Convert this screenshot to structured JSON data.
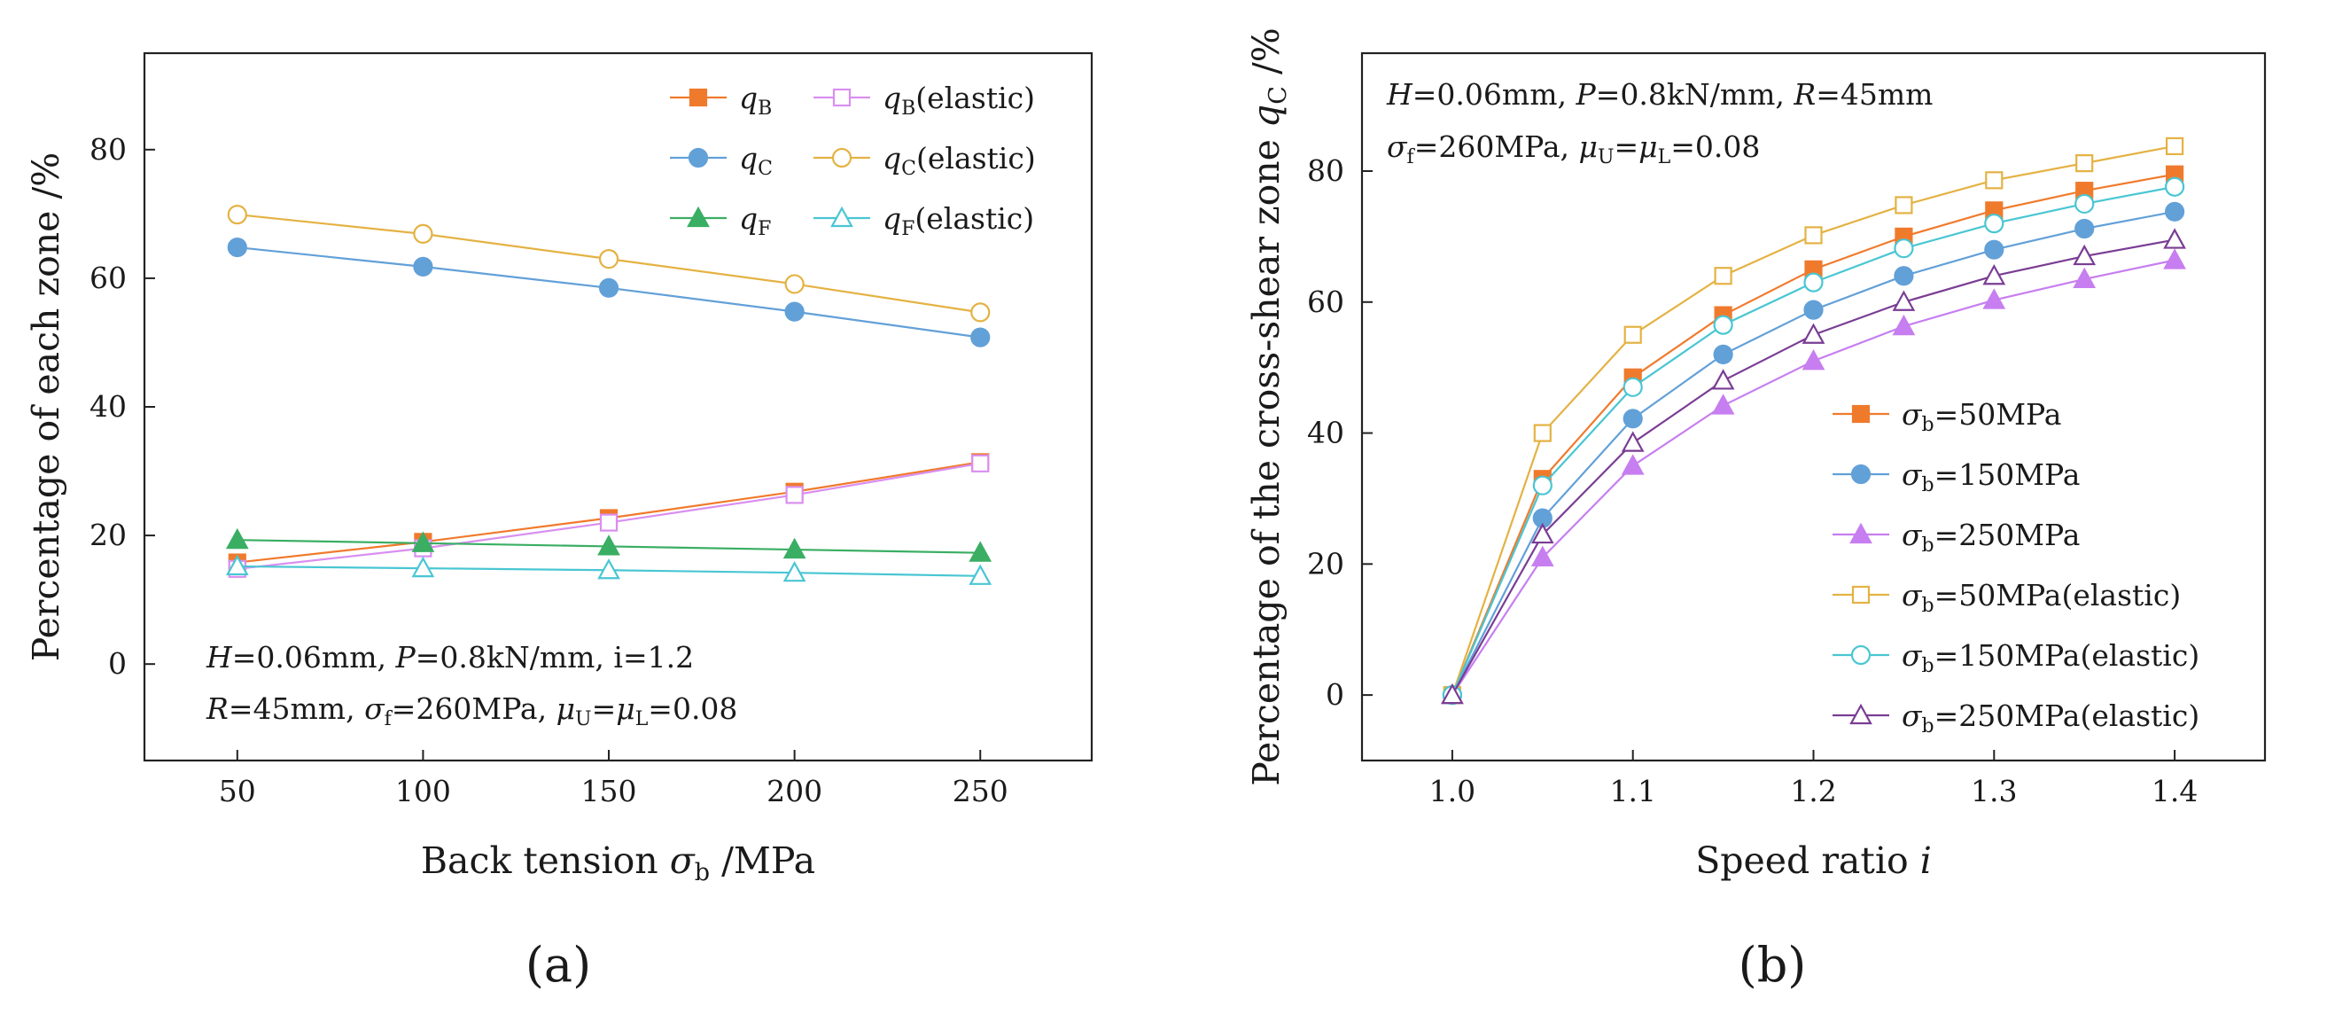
{
  "chart_data": [
    {
      "type": "line",
      "panel_label": "(a)",
      "xlabel": {
        "prefix": "Back tension ",
        "symbol": "σ",
        "sub": "b",
        "suffix": " /MPa"
      },
      "ylabel": "Percentage of each zone /%",
      "xlim": [
        25,
        280
      ],
      "ylim": [
        -15,
        95
      ],
      "xticks": [
        "50",
        "100",
        "150",
        "200",
        "250"
      ],
      "yticks": [
        "0",
        "20",
        "40",
        "60",
        "80"
      ],
      "x": [
        50,
        100,
        150,
        200,
        250
      ],
      "annotations": [
        {
          "parts": [
            [
              "H",
              "it"
            ],
            [
              "=0.06mm, ",
              ""
            ],
            [
              "P",
              "it"
            ],
            [
              "=0.8kN/mm, i=1.2",
              ""
            ]
          ]
        },
        {
          "parts": [
            [
              "R",
              "it"
            ],
            [
              "=45mm, ",
              ""
            ],
            [
              "σ",
              "it"
            ],
            [
              "f",
              "sub"
            ],
            [
              "=260MPa, ",
              ""
            ],
            [
              "μ",
              "it"
            ],
            [
              "U",
              "sub"
            ],
            [
              "=",
              ""
            ],
            [
              "μ",
              "it"
            ],
            [
              "L",
              "sub"
            ],
            [
              "=0.08",
              ""
            ]
          ]
        }
      ],
      "series": [
        {
          "name": "qB",
          "label": {
            "sym": "q",
            "sub": "B",
            "suffix": ""
          },
          "color": "#f07a2c",
          "marker": "square",
          "filled": true,
          "values": [
            15.8,
            19.0,
            22.7,
            26.8,
            31.4
          ]
        },
        {
          "name": "qB(elastic)",
          "label": {
            "sym": "q",
            "sub": "B",
            "suffix": "(elastic)"
          },
          "color": "#d98ff0",
          "marker": "square",
          "filled": false,
          "values": [
            14.8,
            18.0,
            22.0,
            26.3,
            31.2
          ]
        },
        {
          "name": "qC",
          "label": {
            "sym": "q",
            "sub": "C",
            "suffix": ""
          },
          "color": "#62a0d8",
          "marker": "circle",
          "filled": true,
          "values": [
            64.8,
            61.8,
            58.5,
            54.8,
            50.8
          ]
        },
        {
          "name": "qC(elastic)",
          "label": {
            "sym": "q",
            "sub": "C",
            "suffix": "(elastic)"
          },
          "color": "#e4b243",
          "marker": "circle",
          "filled": false,
          "values": [
            69.9,
            66.9,
            63.0,
            59.1,
            54.7
          ]
        },
        {
          "name": "qF",
          "label": {
            "sym": "q",
            "sub": "F",
            "suffix": ""
          },
          "color": "#3aae63",
          "marker": "triangle",
          "filled": true,
          "values": [
            19.3,
            18.8,
            18.3,
            17.8,
            17.3
          ]
        },
        {
          "name": "qF(elastic)",
          "label": {
            "sym": "q",
            "sub": "F",
            "suffix": "(elastic)"
          },
          "color": "#49c6d3",
          "marker": "triangle",
          "filled": false,
          "values": [
            15.2,
            14.9,
            14.6,
            14.2,
            13.7
          ]
        }
      ]
    },
    {
      "type": "line",
      "panel_label": "(b)",
      "xlabel": {
        "prefix": "Speed ratio ",
        "symbol": "i",
        "sub": "",
        "suffix": ""
      },
      "ylabel": "Percentage of the cross-shear zone",
      "ylabel_symbol": {
        "sym": "q",
        "sub": "C",
        "suffix": " /%"
      },
      "xlim": [
        0.95,
        1.45
      ],
      "ylim": [
        -10,
        98
      ],
      "xticks": [
        "1.0",
        "1.1",
        "1.2",
        "1.3",
        "1.4"
      ],
      "yticks": [
        "0",
        "20",
        "40",
        "60",
        "80"
      ],
      "x": [
        1.0,
        1.05,
        1.1,
        1.15,
        1.2,
        1.25,
        1.3,
        1.35,
        1.4
      ],
      "annotations": [
        {
          "parts": [
            [
              "H",
              "it"
            ],
            [
              "=0.06mm, ",
              ""
            ],
            [
              "P",
              "it"
            ],
            [
              "=0.8kN/mm, ",
              ""
            ],
            [
              "R",
              "it"
            ],
            [
              "=45mm",
              ""
            ]
          ]
        },
        {
          "parts": [
            [
              "σ",
              "it"
            ],
            [
              "f",
              "sub"
            ],
            [
              "=260MPa, ",
              ""
            ],
            [
              "μ",
              "it"
            ],
            [
              "U",
              "sub"
            ],
            [
              "=",
              ""
            ],
            [
              "μ",
              "it"
            ],
            [
              "L",
              "sub"
            ],
            [
              "=0.08",
              ""
            ]
          ]
        }
      ],
      "series": [
        {
          "name": "σb=50MPa",
          "label": {
            "sym": "σ",
            "sub": "b",
            "suffix": "=50MPa"
          },
          "color": "#f07a2c",
          "marker": "square",
          "filled": true,
          "values": [
            0,
            33,
            48.5,
            58,
            65,
            70,
            74,
            77,
            79.5
          ]
        },
        {
          "name": "σb=150MPa",
          "label": {
            "sym": "σ",
            "sub": "b",
            "suffix": "=150MPa"
          },
          "color": "#62a0d8",
          "marker": "circle",
          "filled": true,
          "values": [
            0,
            27,
            42.2,
            52,
            58.8,
            64,
            68,
            71.2,
            73.8
          ]
        },
        {
          "name": "σb=250MPa",
          "label": {
            "sym": "σ",
            "sub": "b",
            "suffix": "=250MPa"
          },
          "color": "#c77ef0",
          "marker": "triangle",
          "filled": true,
          "values": [
            0,
            21,
            35,
            44.2,
            51,
            56.3,
            60.3,
            63.5,
            66.4
          ]
        },
        {
          "name": "σb=50MPa(elastic)",
          "label": {
            "sym": "σ",
            "sub": "b",
            "suffix": "=50MPa(elastic)"
          },
          "color": "#e4b243",
          "marker": "square",
          "filled": false,
          "values": [
            0,
            40,
            55,
            64,
            70.2,
            74.8,
            78.6,
            81.2,
            83.8
          ]
        },
        {
          "name": "σb=150MPa(elastic)",
          "label": {
            "sym": "σ",
            "sub": "b",
            "suffix": "=150MPa(elastic)"
          },
          "color": "#49c6d3",
          "marker": "circle",
          "filled": false,
          "values": [
            0,
            32,
            47,
            56.5,
            63,
            68.2,
            72,
            75,
            77.6
          ]
        },
        {
          "name": "σb=250MPa(elastic)",
          "label": {
            "sym": "σ",
            "sub": "b",
            "suffix": "=250MPa(elastic)"
          },
          "color": "#7a3d94",
          "marker": "triangle",
          "filled": false,
          "values": [
            0,
            24.5,
            38.5,
            48,
            55,
            60,
            64,
            67,
            69.5
          ]
        }
      ]
    }
  ]
}
